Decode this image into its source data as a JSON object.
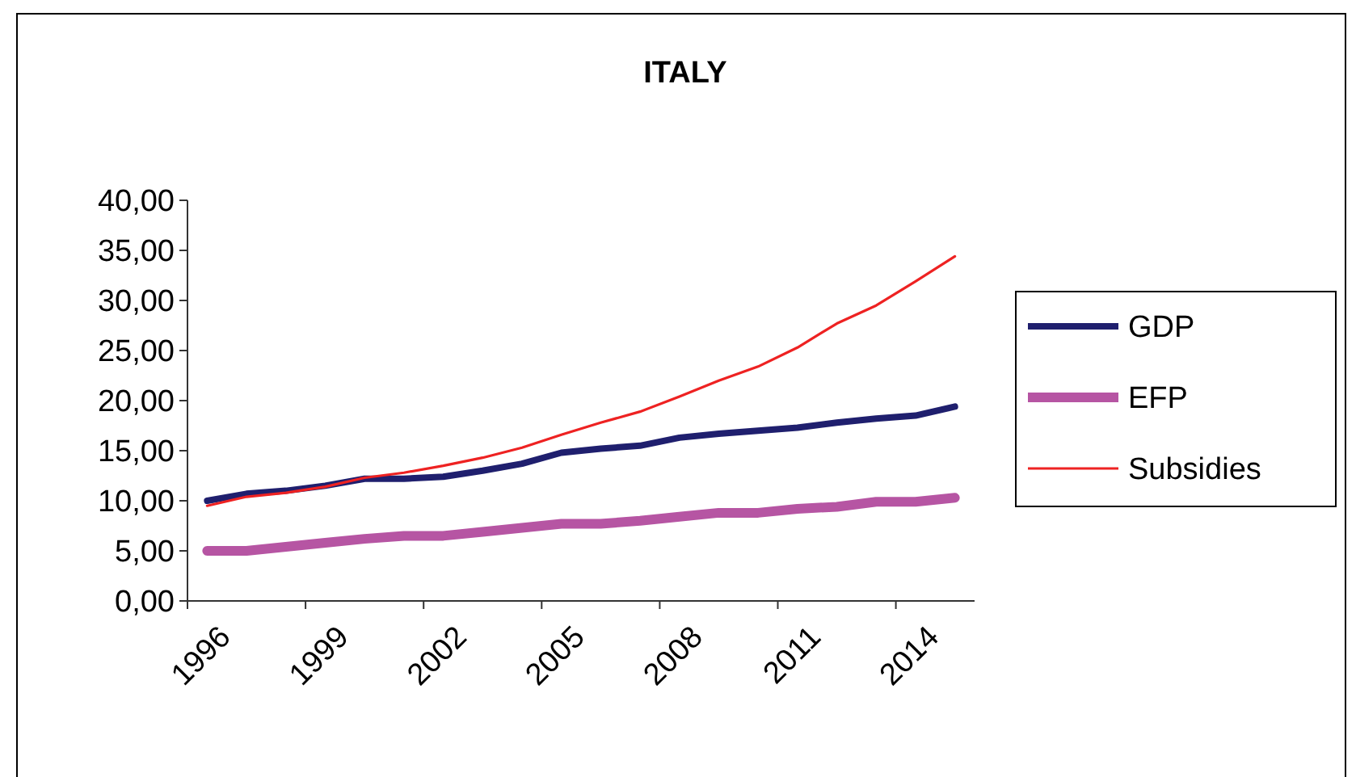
{
  "chart_data": {
    "type": "line",
    "title": "ITALY",
    "categories": [
      "1996",
      null,
      null,
      "1999",
      null,
      null,
      "2002",
      null,
      null,
      "2005",
      null,
      null,
      "2008",
      null,
      null,
      "2011",
      null,
      null,
      "2014",
      null
    ],
    "series": [
      {
        "name": "GDP",
        "color": "#1f1f6e",
        "values": [
          10.0,
          10.7,
          11.0,
          11.5,
          12.2,
          12.2,
          12.4,
          13.0,
          13.7,
          14.8,
          15.2,
          15.5,
          16.3,
          16.7,
          17.0,
          17.3,
          17.8,
          18.2,
          18.5,
          19.4
        ]
      },
      {
        "name": "EFP",
        "color": "#b655a3",
        "values": [
          5.0,
          5.0,
          5.4,
          5.8,
          6.2,
          6.5,
          6.5,
          6.9,
          7.3,
          7.7,
          7.7,
          8.0,
          8.4,
          8.8,
          8.8,
          9.2,
          9.4,
          9.9,
          9.9,
          10.3
        ]
      },
      {
        "name": "Subsidies",
        "color": "#ee2222",
        "values": [
          9.5,
          10.4,
          10.8,
          11.4,
          12.3,
          12.8,
          13.5,
          14.3,
          15.3,
          16.6,
          17.8,
          18.9,
          20.4,
          22.0,
          23.4,
          25.3,
          27.7,
          29.5,
          31.9,
          34.4
        ]
      }
    ],
    "ylim": [
      0,
      40
    ],
    "yticks": [
      {
        "value": 0,
        "label": "0,00"
      },
      {
        "value": 5,
        "label": "5,00"
      },
      {
        "value": 10,
        "label": "10,00"
      },
      {
        "value": 15,
        "label": "15,00"
      },
      {
        "value": 20,
        "label": "20,00"
      },
      {
        "value": 25,
        "label": "25,00"
      },
      {
        "value": 30,
        "label": "30,00"
      },
      {
        "value": 35,
        "label": "35,00"
      },
      {
        "value": 40,
        "label": "40,00"
      }
    ],
    "grid": false,
    "legend": "right",
    "marker": "none",
    "line_style": "solid"
  }
}
